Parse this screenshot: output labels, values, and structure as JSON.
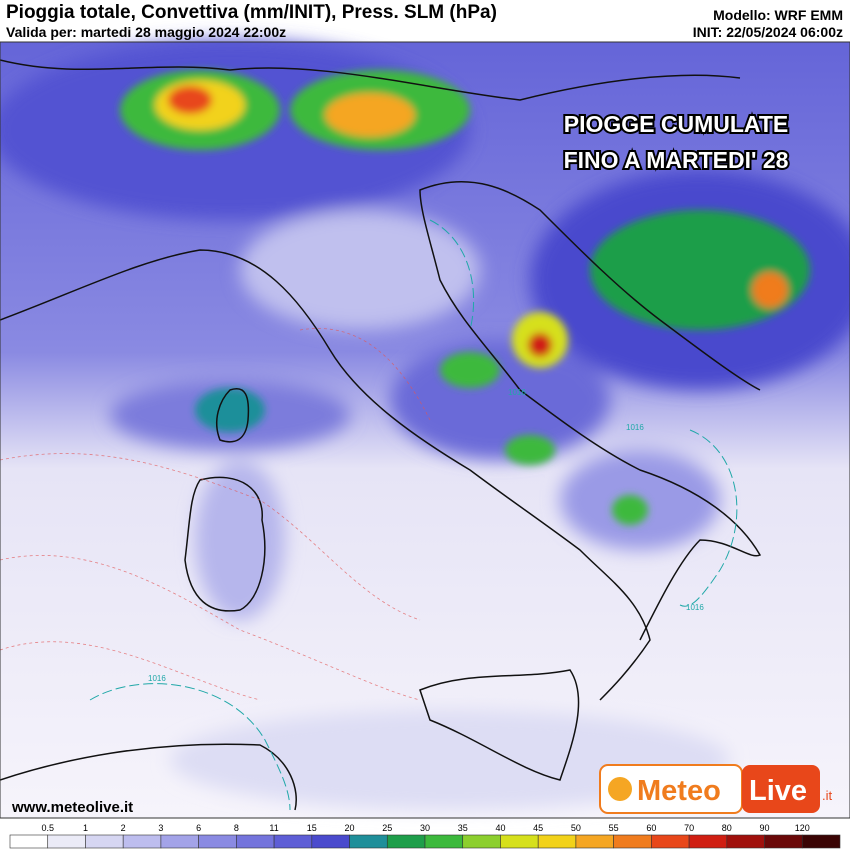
{
  "header": {
    "title": "Pioggia totale, Convettiva (mm/INIT), Press. SLM (hPa)",
    "valid": "Valida per: martedi 28 maggio 2024 22:00z",
    "model": "Modello: WRF EMM",
    "init": "INIT: 22/05/2024 06:00z"
  },
  "overlay": {
    "line1": "PIOGGE CUMULATE",
    "line2": "FINO A MARTEDI' 28"
  },
  "isobars": [
    "1016",
    "1016",
    "1016",
    "1016"
  ],
  "footer": {
    "url": "www.meteolive.it",
    "logo_a": "Meteo",
    "logo_b": "Live",
    "logo_c": ".it"
  },
  "colorbar": {
    "labels": [
      0.5,
      1,
      2,
      3,
      6,
      8,
      11,
      15,
      20,
      25,
      30,
      35,
      40,
      45,
      50,
      55,
      60,
      70,
      80,
      90,
      120
    ],
    "colors": [
      "#ffffff",
      "#ebebf7",
      "#d6d6f2",
      "#bdbdee",
      "#a3a3e8",
      "#8a8ae2",
      "#7474dc",
      "#5e5ed6",
      "#4a4acd",
      "#1f8f9a",
      "#1e9e4a",
      "#3cb93c",
      "#8ccf2e",
      "#d6e01c",
      "#f2d21a",
      "#f5a623",
      "#f07c1e",
      "#e8471a",
      "#d01e12",
      "#a0100c",
      "#6a0808",
      "#3a0404"
    ]
  }
}
